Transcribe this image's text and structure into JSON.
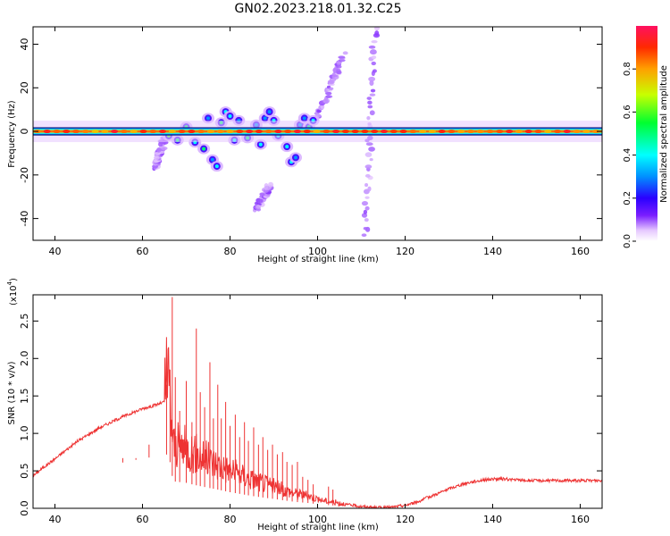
{
  "figure": {
    "title": "GN02.2023.218.01.32.C25"
  },
  "chart_data": [
    {
      "type": "heatmap",
      "title": "GN02.2023.218.01.32.C25",
      "xlabel": "Height of straight line (km)",
      "ylabel": "Frequency (Hz)",
      "xlim": [
        35,
        165
      ],
      "ylim": [
        -50,
        48
      ],
      "x_ticks": [
        40,
        60,
        80,
        100,
        120,
        140,
        160
      ],
      "y_ticks": [
        -40,
        -20,
        0,
        20,
        40
      ],
      "colorbar": {
        "label": "Normalized spectral amplitude",
        "range": [
          0,
          1
        ],
        "ticks": [
          "0.0",
          "0.2",
          "0.4",
          "0.6",
          "0.8"
        ]
      },
      "features": {
        "carrier_line_frequency_hz": 0,
        "carrier_x_range_km": [
          35,
          165
        ],
        "scattered_blobs": [
          {
            "x": 66,
            "y": -2,
            "amp": 0.6
          },
          {
            "x": 68,
            "y": -4,
            "amp": 0.5
          },
          {
            "x": 70,
            "y": 2,
            "amp": 0.5
          },
          {
            "x": 72,
            "y": -5,
            "amp": 0.4
          },
          {
            "x": 74,
            "y": -8,
            "amp": 0.5
          },
          {
            "x": 75,
            "y": 6,
            "amp": 0.3
          },
          {
            "x": 76,
            "y": -13,
            "amp": 0.3
          },
          {
            "x": 77,
            "y": -16,
            "amp": 0.4
          },
          {
            "x": 78,
            "y": 4,
            "amp": 0.5
          },
          {
            "x": 79,
            "y": 9,
            "amp": 0.4
          },
          {
            "x": 80,
            "y": 7,
            "amp": 0.4
          },
          {
            "x": 81,
            "y": -4,
            "amp": 0.4
          },
          {
            "x": 82,
            "y": 5,
            "amp": 0.3
          },
          {
            "x": 84,
            "y": -3,
            "amp": 0.5
          },
          {
            "x": 86,
            "y": 3,
            "amp": 0.3
          },
          {
            "x": 87,
            "y": -6,
            "amp": 0.4
          },
          {
            "x": 88,
            "y": 6,
            "amp": 0.3
          },
          {
            "x": 89,
            "y": 9,
            "amp": 0.3
          },
          {
            "x": 90,
            "y": 5,
            "amp": 0.4
          },
          {
            "x": 91,
            "y": -2,
            "amp": 0.4
          },
          {
            "x": 93,
            "y": -7,
            "amp": 0.4
          },
          {
            "x": 94,
            "y": -14,
            "amp": 0.4
          },
          {
            "x": 95,
            "y": -12,
            "amp": 0.3
          },
          {
            "x": 96,
            "y": 3,
            "amp": 0.3
          },
          {
            "x": 97,
            "y": 6,
            "amp": 0.3
          },
          {
            "x": 98,
            "y": 2,
            "amp": 0.5
          },
          {
            "x": 99,
            "y": 5,
            "amp": 0.4
          }
        ],
        "faint_streaks": [
          {
            "x0": 100,
            "y0": 6,
            "x1": 106,
            "y1": 35
          },
          {
            "x0": 111,
            "y0": -48,
            "x1": 113,
            "y1": 48
          },
          {
            "x0": 63,
            "y0": -17,
            "x1": 65,
            "y1": -3
          },
          {
            "x0": 86,
            "y0": -36,
            "x1": 89,
            "y1": -25
          }
        ]
      }
    },
    {
      "type": "line",
      "xlabel": "Height of straight line (km)",
      "ylabel": "SNR (10 * v/v)",
      "y_multiplier_label": "(x10",
      "y_multiplier_exp": "4",
      "y_multiplier_close": ")",
      "xlim": [
        35,
        165
      ],
      "ylim": [
        0,
        2.85
      ],
      "x_ticks": [
        40,
        60,
        80,
        100,
        120,
        140,
        160
      ],
      "y_ticks": [
        "0.0",
        "0.5",
        "1.0",
        "1.5",
        "2.0",
        "2.5"
      ],
      "y_tick_values": [
        0,
        0.5,
        1.0,
        1.5,
        2.0,
        2.5
      ],
      "series": [
        {
          "color": "#ee3333",
          "x": [
            35,
            37,
            40,
            45,
            50,
            55,
            60,
            63,
            65,
            66,
            67,
            70,
            72,
            75,
            78,
            80,
            83,
            85,
            88,
            90,
            93,
            95,
            98,
            100,
            103,
            105,
            108,
            110,
            112,
            115,
            117,
            120,
            123,
            125,
            128,
            130,
            133,
            135,
            138,
            140,
            143,
            145,
            148,
            150,
            153,
            155,
            158,
            160,
            163,
            165
          ],
          "values": [
            0.43,
            0.53,
            0.66,
            0.89,
            1.07,
            1.21,
            1.33,
            1.38,
            1.42,
            1.45,
            0.72,
            0.68,
            0.62,
            0.55,
            0.48,
            0.43,
            0.37,
            0.33,
            0.28,
            0.25,
            0.2,
            0.17,
            0.14,
            0.11,
            0.08,
            0.06,
            0.04,
            0.025,
            0.015,
            0.01,
            0.015,
            0.04,
            0.09,
            0.14,
            0.21,
            0.26,
            0.32,
            0.35,
            0.38,
            0.39,
            0.39,
            0.38,
            0.37,
            0.37,
            0.37,
            0.37,
            0.37,
            0.37,
            0.37,
            0.37
          ]
        }
      ],
      "spikes": [
        {
          "x": 65.5,
          "y": 1.65
        },
        {
          "x": 66.3,
          "y": 1.85
        },
        {
          "x": 66.8,
          "y": 2.82
        },
        {
          "x": 67.5,
          "y": 1.75
        },
        {
          "x": 68.5,
          "y": 1.3
        },
        {
          "x": 70,
          "y": 1.7
        },
        {
          "x": 71.3,
          "y": 1.15
        },
        {
          "x": 72.3,
          "y": 2.4
        },
        {
          "x": 73.2,
          "y": 1.55
        },
        {
          "x": 74.2,
          "y": 1.35
        },
        {
          "x": 75.4,
          "y": 1.95
        },
        {
          "x": 76.2,
          "y": 1.2
        },
        {
          "x": 77.2,
          "y": 1.65
        },
        {
          "x": 78,
          "y": 1.2
        },
        {
          "x": 79,
          "y": 1.42
        },
        {
          "x": 80,
          "y": 1.1
        },
        {
          "x": 81.2,
          "y": 1.25
        },
        {
          "x": 82.2,
          "y": 0.95
        },
        {
          "x": 83.3,
          "y": 1.15
        },
        {
          "x": 84.2,
          "y": 0.9
        },
        {
          "x": 85.4,
          "y": 1.08
        },
        {
          "x": 86.5,
          "y": 0.85
        },
        {
          "x": 87.5,
          "y": 0.95
        },
        {
          "x": 88.6,
          "y": 0.78
        },
        {
          "x": 89.7,
          "y": 0.85
        },
        {
          "x": 90.8,
          "y": 0.72
        },
        {
          "x": 92,
          "y": 0.75
        },
        {
          "x": 93,
          "y": 0.62
        },
        {
          "x": 94.2,
          "y": 0.58
        },
        {
          "x": 95.4,
          "y": 0.62
        },
        {
          "x": 96.6,
          "y": 0.42
        },
        {
          "x": 97.8,
          "y": 0.38
        },
        {
          "x": 99,
          "y": 0.32
        },
        {
          "x": 55.5,
          "y": 0.67
        },
        {
          "x": 58.5,
          "y": 0.67
        },
        {
          "x": 61.5,
          "y": 0.85
        },
        {
          "x": 102.5,
          "y": 0.29
        },
        {
          "x": 103.5,
          "y": 0.25
        }
      ]
    }
  ]
}
